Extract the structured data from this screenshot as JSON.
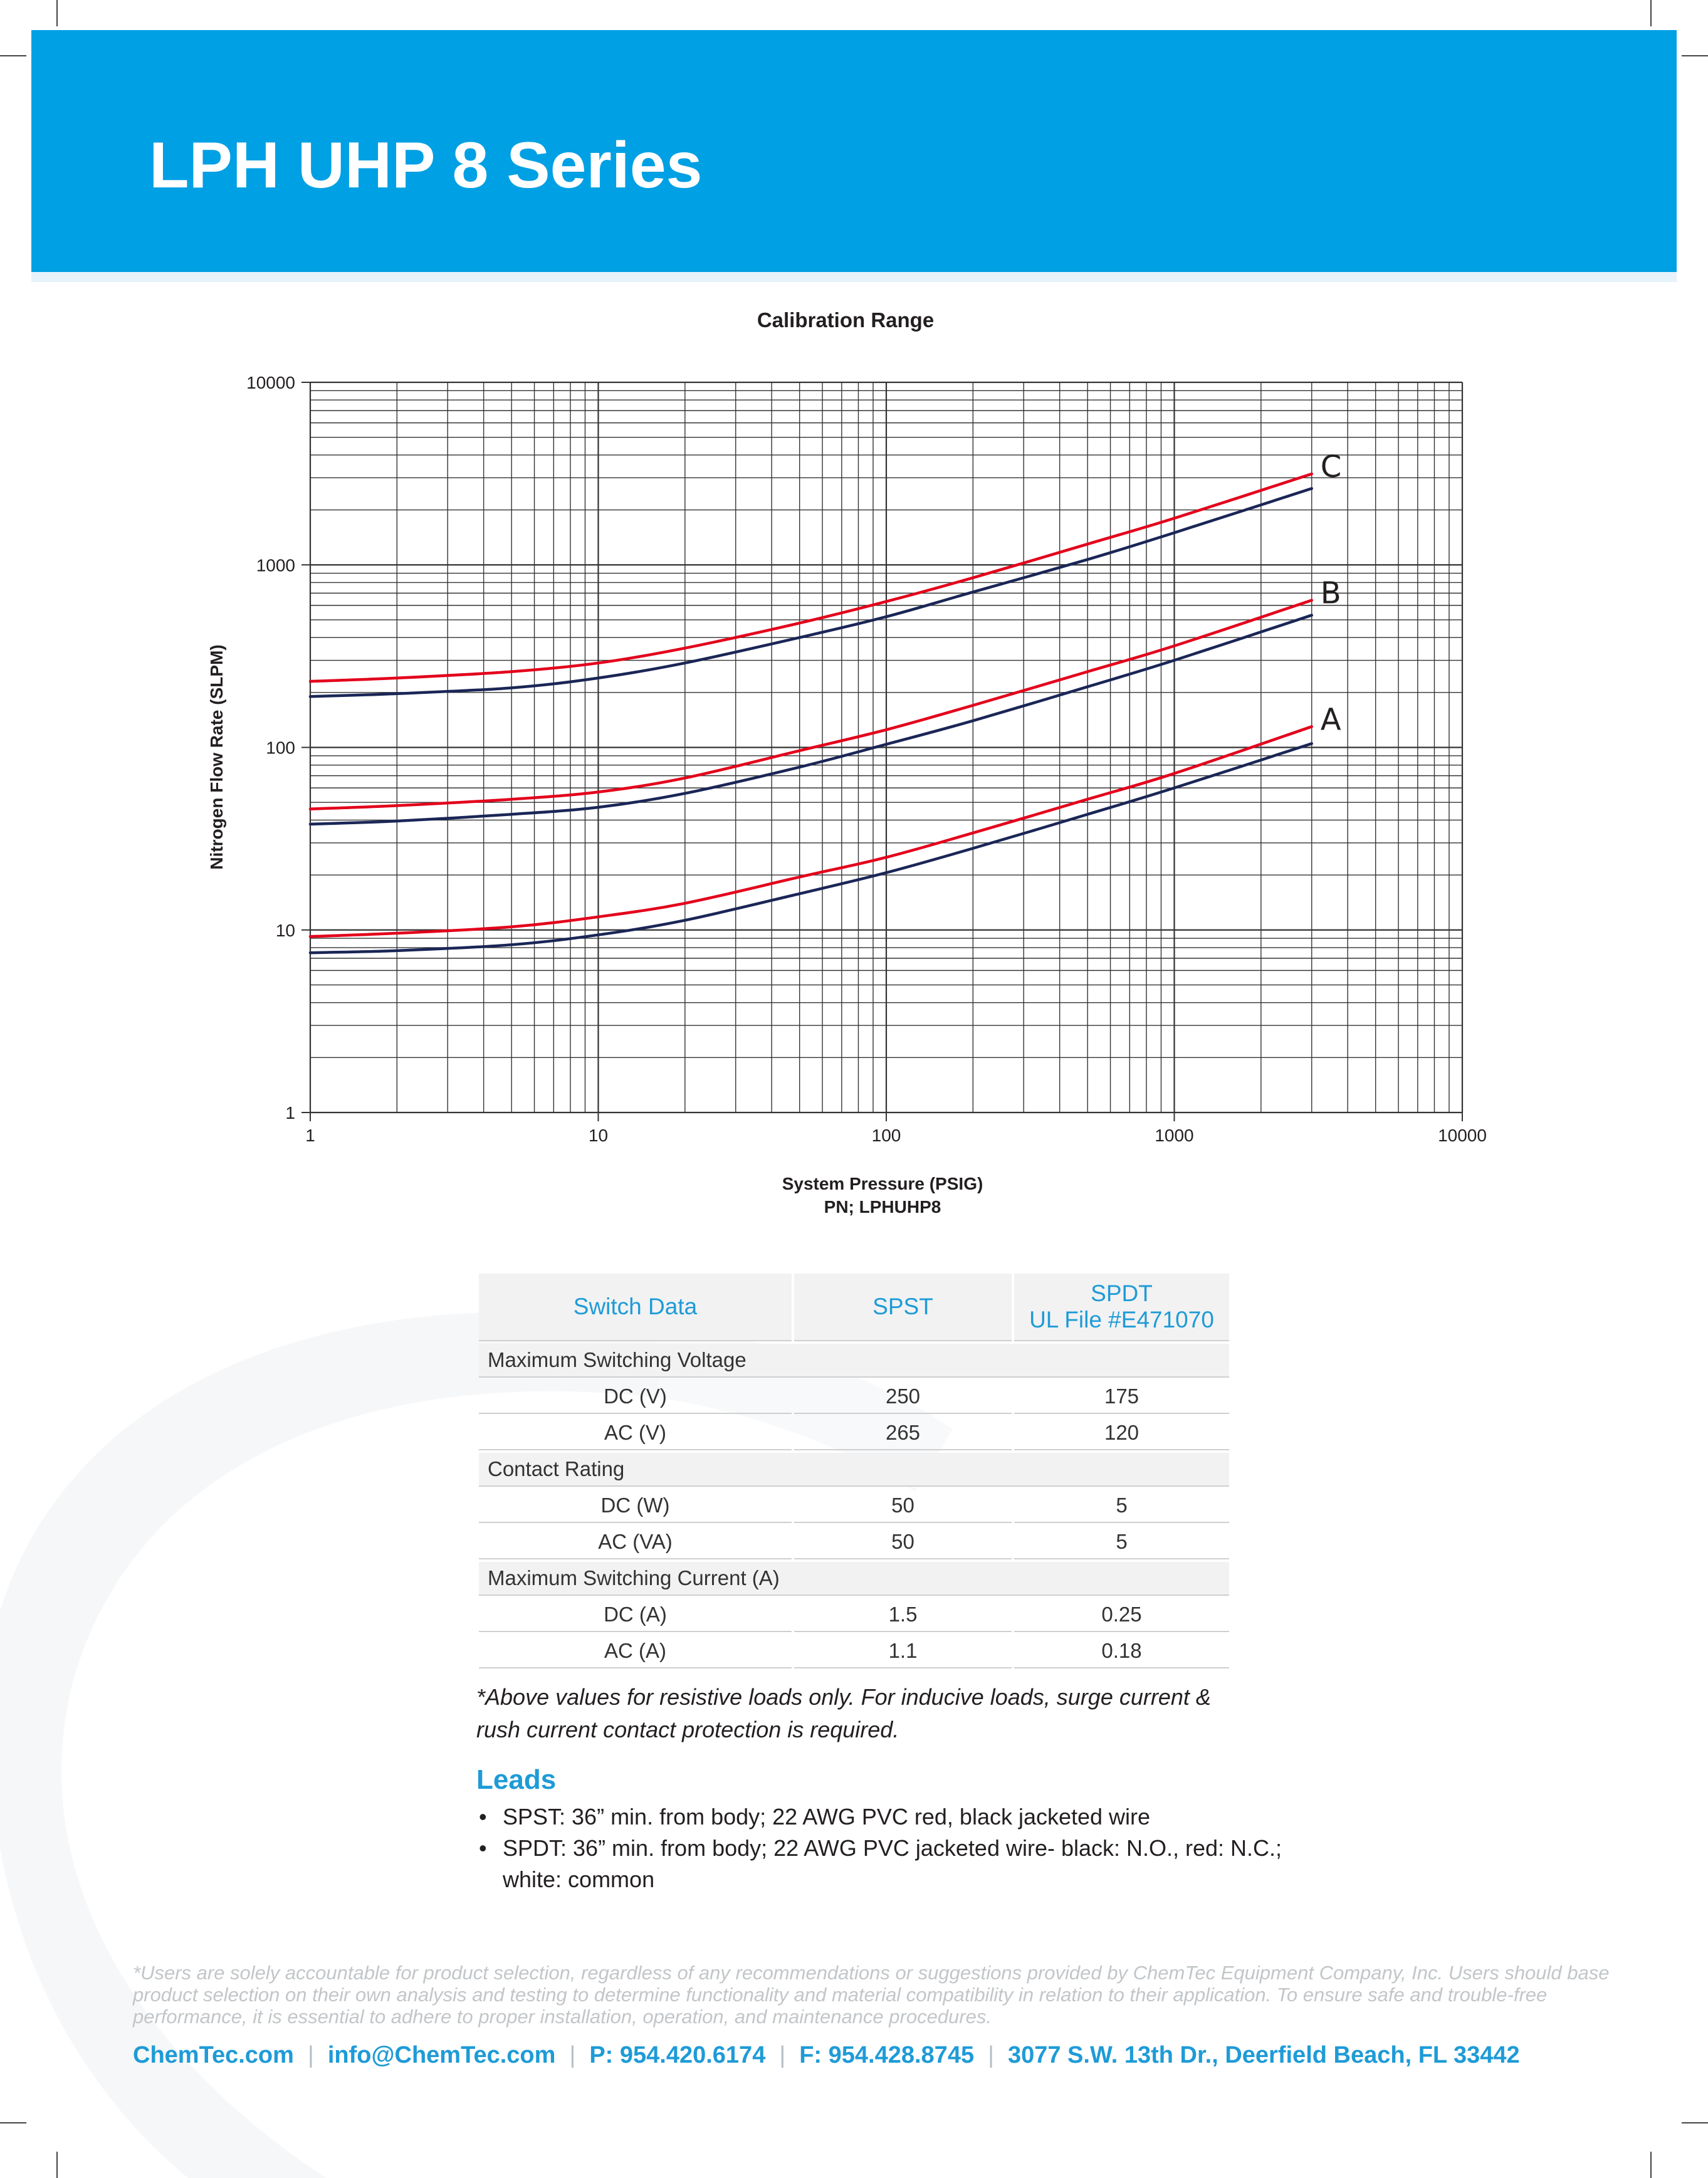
{
  "header": {
    "title": "LPH UHP 8 Series"
  },
  "chart_data": {
    "type": "line",
    "title": "Calibration Range",
    "xlabel": "System Pressure (PSIG)",
    "xlabel_sub": "PN; LPHUHP8",
    "ylabel": "Nitrogen Flow Rate (SLPM)",
    "x_scale": "log",
    "y_scale": "log",
    "xlim": [
      1,
      10000
    ],
    "ylim": [
      1,
      10000
    ],
    "x_ticks": [
      "1",
      "10",
      "100",
      "1000",
      "10000"
    ],
    "y_ticks": [
      "1",
      "10",
      "100",
      "1000",
      "10000"
    ],
    "grid": true,
    "legend": "none",
    "series_colors": {
      "red": "#e3001b",
      "navy": "#1a2656"
    },
    "x": [
      1,
      2,
      5,
      10,
      20,
      50,
      100,
      200,
      500,
      1000,
      3000
    ],
    "series": [
      {
        "label": "A",
        "color": "red",
        "values": [
          9.2,
          9.6,
          10.4,
          11.8,
          14,
          19.5,
          25,
          34,
          52,
          72,
          130
        ]
      },
      {
        "color": "navy",
        "values": [
          7.5,
          7.7,
          8.3,
          9.4,
          11.3,
          15.8,
          20.6,
          28,
          43,
          60,
          105
        ]
      },
      {
        "label": "B",
        "color": "red",
        "values": [
          46,
          48,
          52,
          57,
          68,
          96,
          125,
          170,
          260,
          360,
          640
        ]
      },
      {
        "color": "navy",
        "values": [
          38,
          39.5,
          43,
          47,
          56,
          78,
          104,
          140,
          215,
          300,
          530
        ]
      },
      {
        "label": "C",
        "color": "red",
        "values": [
          230,
          240,
          260,
          290,
          350,
          480,
          630,
          850,
          1300,
          1800,
          3150
        ]
      },
      {
        "color": "navy",
        "values": [
          190,
          197,
          212,
          240,
          290,
          400,
          520,
          710,
          1070,
          1500,
          2620
        ]
      }
    ]
  },
  "switch_table": {
    "headers": [
      "Switch Data",
      "SPST",
      "SPDT",
      "UL File #E471070"
    ],
    "sections": [
      {
        "label": "Maximum Switching Voltage",
        "rows": [
          [
            "DC (V)",
            "250",
            "175"
          ],
          [
            "AC (V)",
            "265",
            "120"
          ]
        ]
      },
      {
        "label": "Contact Rating",
        "rows": [
          [
            "DC (W)",
            "50",
            "5"
          ],
          [
            "AC (VA)",
            "50",
            "5"
          ]
        ]
      },
      {
        "label": "Maximum Switching Current (A)",
        "rows": [
          [
            "DC (A)",
            "1.5",
            "0.25"
          ],
          [
            "AC (A)",
            "1.1",
            "0.18"
          ]
        ]
      }
    ]
  },
  "note": "*Above values for resistive loads only. For inducive loads, surge current & rush current contact protection is required.",
  "leads": {
    "title": "Leads",
    "items": [
      "SPST: 36” min. from body; 22 AWG PVC red, black jacketed wire",
      "SPDT: 36” min. from body; 22 AWG PVC jacketed wire- black: N.O., red: N.C.; white: common"
    ]
  },
  "disclaimer": "*Users are solely accountable for product selection, regardless of any recommendations or suggestions provided by ChemTec Equipment Company, Inc. Users should base product selection on their own analysis and testing to determine functionality and material compatibility in relation to their application. To ensure safe and trouble-free performance, it is essential to adhere to proper installation, operation, and maintenance procedures.",
  "footer": {
    "separator": "|",
    "website": "ChemTec.com",
    "email": "info@ChemTec.com",
    "phone": "P: 954.420.6174",
    "fax": "F: 954.428.8745",
    "address": "3077 S.W. 13th Dr., Deerfield Beach, FL 33442"
  }
}
